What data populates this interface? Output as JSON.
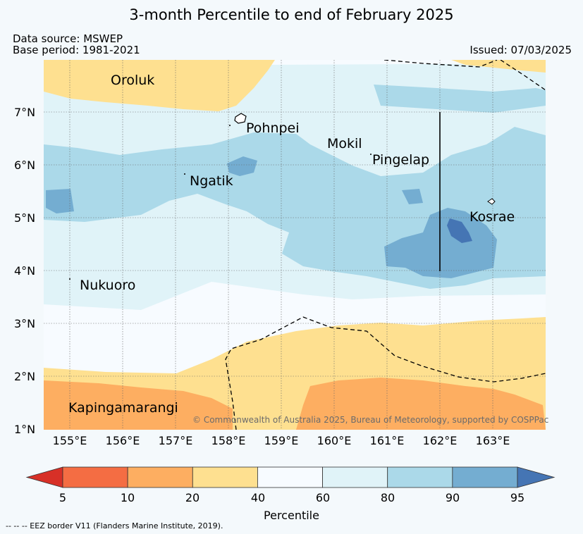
{
  "title": "3-month Percentile to end of February 2025",
  "data_source": "Data source: MSWEP",
  "base_period": "Base period: 1981-2021",
  "issued": "Issued: 07/03/2025",
  "credit": "© Commonwealth of Australia 2025, Bureau of Meteorology, supported by COSPPac",
  "lat_labels": [
    "7°N",
    "6°N",
    "5°N",
    "4°N",
    "3°N",
    "2°N",
    "1°N"
  ],
  "lon_labels": [
    "155°E",
    "156°E",
    "157°E",
    "158°E",
    "159°E",
    "160°E",
    "161°E",
    "162°E",
    "163°E"
  ],
  "places": [
    "Oroluk",
    "Pohnpei",
    "Mokil",
    "Pingelap",
    "Ngatik",
    "Kosrae",
    "Nukuoro",
    "Kapingamarangi"
  ],
  "colorbar": {
    "ticks": [
      "5",
      "10",
      "20",
      "40",
      "60",
      "80",
      "90",
      "95"
    ],
    "label": "Percentile",
    "colors": [
      "#d73027",
      "#f46d43",
      "#fdae61",
      "#fee090",
      "#f7fbff",
      "#e0f3f8",
      "#abd9e9",
      "#74add1",
      "#4575b4"
    ]
  },
  "eez_note": "--  --  -- EEZ border V11 (Flanders Marine Institute, 2019)."
}
